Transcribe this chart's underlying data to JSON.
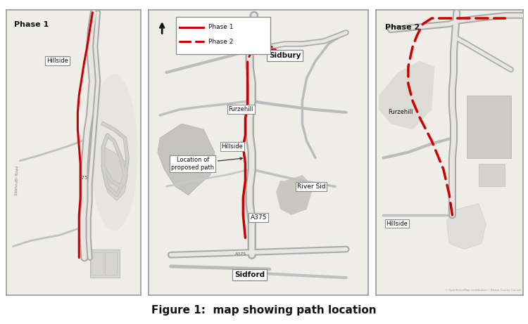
{
  "figure_title": "Figure 1:  map showing path location",
  "figure_title_fontsize": 11,
  "figure_title_weight": "bold",
  "background_color": "#ffffff",
  "map_bg": "#eeede8",
  "route_color": "#cc0000",
  "border_color": "#999999",
  "panel_labels": [
    "Phase 1",
    "Phase 2"
  ],
  "legend_phase1_label": "Phase 1",
  "legend_phase2_label": "Phase 2",
  "road_outer": "#aaaaaa",
  "road_inner": "#e8e6e0",
  "road_major_outer": "#999999",
  "road_major_inner": "#d8d6d0",
  "terrain_gray": "#cccccc",
  "terrain_light": "#d8d6d0",
  "water_gray": "#b8b8b8"
}
